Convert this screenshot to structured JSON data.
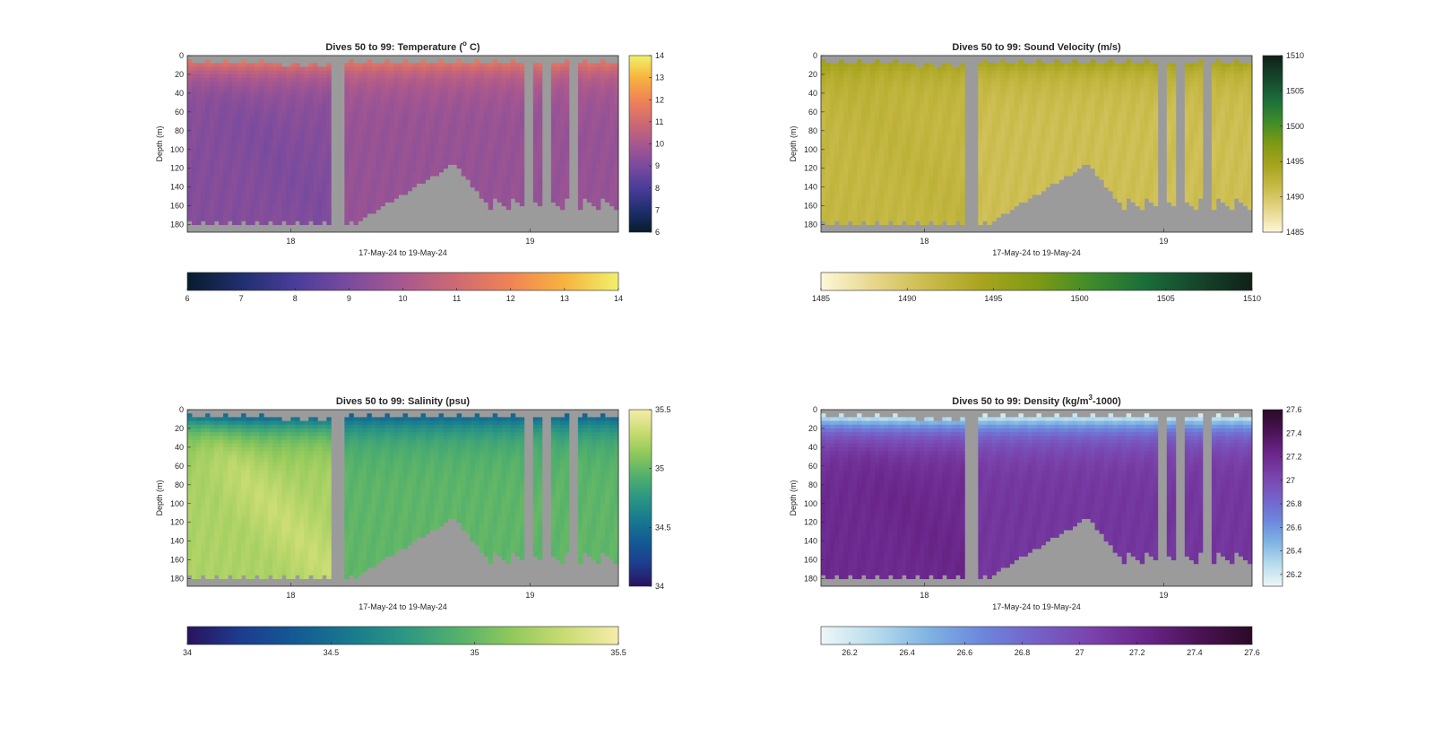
{
  "chart_data": [
    {
      "type": "heatmap",
      "title": "Dives 50 to 99: Temperature (°C)",
      "title_parts": {
        "prefix": "Dives 50 to 99: Temperature (",
        "sup": "o",
        "suffix": " C)"
      },
      "xlabel": "17-May-24 to 19-May-24",
      "ylabel": "Depth (m)",
      "yticks": [
        "0",
        "20",
        "40",
        "60",
        "80",
        "100",
        "120",
        "140",
        "160",
        "180"
      ],
      "xticks": [
        "18",
        "19"
      ],
      "ylim": [
        0,
        188
      ],
      "colorbar_right_ticks": [
        "6",
        "7",
        "8",
        "9",
        "10",
        "11",
        "12",
        "13",
        "14"
      ],
      "colorbar_bottom_ticks": [
        "6",
        "7",
        "8",
        "9",
        "10",
        "11",
        "12",
        "13",
        "14"
      ],
      "clim": [
        6,
        14
      ],
      "colormap": [
        "#071c2c",
        "#1f2f6e",
        "#4a3d9a",
        "#7a4b9e",
        "#a8588f",
        "#cf6a72",
        "#ef8455",
        "#f7b33e",
        "#f0f16b"
      ],
      "surface_value": 11.5,
      "deep_value": 9.6,
      "deep_value_early": 9.2,
      "nan_color": "#9b9b9b"
    },
    {
      "type": "heatmap",
      "title": "Dives 50 to 99: Sound Velocity (m/s)",
      "xlabel": "17-May-24 to 19-May-24",
      "ylabel": "Depth (m)",
      "yticks": [
        "0",
        "20",
        "40",
        "60",
        "80",
        "100",
        "120",
        "140",
        "160",
        "180"
      ],
      "xticks": [
        "18",
        "19"
      ],
      "ylim": [
        0,
        188
      ],
      "colorbar_right_ticks": [
        "1485",
        "1490",
        "1495",
        "1500",
        "1505",
        "1510"
      ],
      "colorbar_bottom_ticks": [
        "1485",
        "1490",
        "1495",
        "1500",
        "1505",
        "1510"
      ],
      "clim": [
        1485,
        1510
      ],
      "colormap": [
        "#fdf7d8",
        "#e6d68a",
        "#c9bb4a",
        "#a8a41e",
        "#7f9a14",
        "#3f8c2a",
        "#1a6e3a",
        "#16452c",
        "#0f2118"
      ],
      "surface_value": 1494.5,
      "deep_value": 1490.8,
      "deep_value_early": 1491.8,
      "nan_color": "#9b9b9b"
    },
    {
      "type": "heatmap",
      "title": "Dives 50 to 99: Salinity (psu)",
      "xlabel": "17-May-24 to 19-May-24",
      "ylabel": "Depth (m)",
      "yticks": [
        "0",
        "20",
        "40",
        "60",
        "80",
        "100",
        "120",
        "140",
        "160",
        "180"
      ],
      "xticks": [
        "18",
        "19"
      ],
      "ylim": [
        0,
        188
      ],
      "colorbar_right_ticks": [
        "34",
        "34.5",
        "35",
        "35.5"
      ],
      "colorbar_bottom_ticks": [
        "34",
        "34.5",
        "35",
        "35.5"
      ],
      "clim": [
        34,
        35.5
      ],
      "colormap": [
        "#29135e",
        "#1d3c8e",
        "#135a94",
        "#18798e",
        "#2b9683",
        "#52b06c",
        "#8fc85b",
        "#c9dc72",
        "#f6ecaa"
      ],
      "surface_value": 34.45,
      "deep_value": 34.98,
      "deep_value_early": 35.22,
      "nan_color": "#9b9b9b"
    },
    {
      "type": "heatmap",
      "title": "Dives 50 to 99: Density (kg/m³-1000)",
      "title_parts": {
        "prefix": "Dives 50 to 99: Density (kg/m",
        "sup": "3",
        "suffix": "-1000)"
      },
      "xlabel": "17-May-24 to 19-May-24",
      "ylabel": "Depth (m)",
      "yticks": [
        "0",
        "20",
        "40",
        "60",
        "80",
        "100",
        "120",
        "140",
        "160",
        "180"
      ],
      "xticks": [
        "18",
        "19"
      ],
      "ylim": [
        0,
        188
      ],
      "colorbar_right_ticks": [
        "26.2",
        "26.4",
        "26.6",
        "26.8",
        "27",
        "27.2",
        "27.4",
        "27.6"
      ],
      "colorbar_bottom_ticks": [
        "26.2",
        "26.4",
        "26.6",
        "26.8",
        "27",
        "27.2",
        "27.4",
        "27.6"
      ],
      "clim": [
        26.1,
        27.6
      ],
      "colormap": [
        "#eef7f8",
        "#b7dcec",
        "#7fb3e3",
        "#6c86dc",
        "#7561c8",
        "#7a43ac",
        "#6a268a",
        "#4b1356",
        "#2a0a26"
      ],
      "surface_value": 26.2,
      "deep_value": 27.12,
      "deep_value_early": 27.2,
      "nan_color": "#9b9b9b"
    }
  ]
}
